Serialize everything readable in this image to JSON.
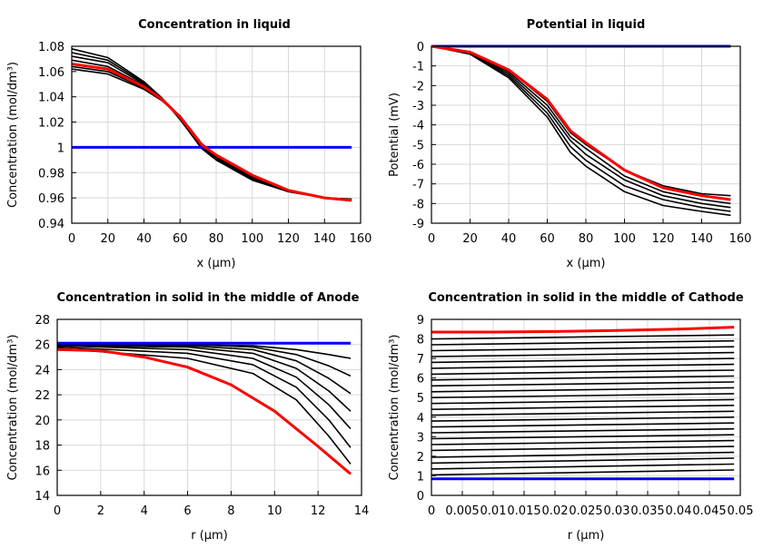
{
  "chart_data": [
    {
      "type": "line",
      "title": "Concentration in liquid",
      "xlabel": "x (µm)",
      "ylabel": "Concentration (mol/dm³)",
      "xlim": [
        0,
        160
      ],
      "ylim": [
        0.94,
        1.08
      ],
      "xticks": [
        0,
        20,
        40,
        60,
        80,
        100,
        120,
        140,
        160
      ],
      "yticks": [
        0.94,
        0.96,
        0.98,
        1,
        1.02,
        1.04,
        1.06,
        1.08
      ],
      "grid": true,
      "series": [
        {
          "color": "#000000",
          "x": [
            0,
            20,
            40,
            50,
            60,
            72,
            80,
            100,
            120,
            140,
            155
          ],
          "y": [
            1.078,
            1.071,
            1.052,
            1.039,
            1.022,
            0.999,
            0.99,
            0.974,
            0.965,
            0.96,
            0.959
          ]
        },
        {
          "color": "#000000",
          "x": [
            0,
            20,
            40,
            50,
            60,
            72,
            80,
            100,
            120,
            140,
            155
          ],
          "y": [
            1.075,
            1.069,
            1.051,
            1.039,
            1.022,
            1.0,
            0.991,
            0.975,
            0.965,
            0.96,
            0.959
          ]
        },
        {
          "color": "#000000",
          "x": [
            0,
            20,
            40,
            50,
            60,
            72,
            80,
            100,
            120,
            140,
            155
          ],
          "y": [
            1.072,
            1.067,
            1.05,
            1.038,
            1.023,
            1.0,
            0.991,
            0.975,
            0.966,
            0.96,
            0.959
          ]
        },
        {
          "color": "#000000",
          "x": [
            0,
            20,
            40,
            50,
            60,
            72,
            80,
            100,
            120,
            140,
            155
          ],
          "y": [
            1.069,
            1.064,
            1.049,
            1.038,
            1.023,
            1.001,
            0.992,
            0.976,
            0.966,
            0.96,
            0.958
          ]
        },
        {
          "color": "#000000",
          "x": [
            0,
            20,
            40,
            50,
            60,
            72,
            80,
            100,
            120,
            140,
            155
          ],
          "y": [
            1.064,
            1.06,
            1.047,
            1.037,
            1.024,
            1.002,
            0.993,
            0.977,
            0.966,
            0.96,
            0.958
          ]
        },
        {
          "color": "#000000",
          "x": [
            0,
            20,
            40,
            50,
            60,
            72,
            80,
            100,
            120,
            140,
            155
          ],
          "y": [
            1.062,
            1.058,
            1.046,
            1.037,
            1.025,
            1.003,
            0.994,
            0.977,
            0.966,
            0.96,
            0.958
          ]
        },
        {
          "color": "#0000ff",
          "x": [
            0,
            155
          ],
          "y": [
            1,
            1
          ]
        },
        {
          "color": "#ff0000",
          "x": [
            0,
            20,
            40,
            50,
            60,
            72,
            80,
            100,
            120,
            140,
            155
          ],
          "y": [
            1.066,
            1.062,
            1.048,
            1.038,
            1.024,
            1.002,
            0.994,
            0.978,
            0.966,
            0.96,
            0.958
          ]
        }
      ]
    },
    {
      "type": "line",
      "title": "Potential in liquid",
      "xlabel": "x (µm)",
      "ylabel": "Potential (mV)",
      "xlim": [
        0,
        160
      ],
      "ylim": [
        -9,
        0
      ],
      "xticks": [
        0,
        20,
        40,
        60,
        80,
        100,
        120,
        140,
        160
      ],
      "yticks": [
        -9,
        -8,
        -7,
        -6,
        -5,
        -4,
        -3,
        -2,
        -1,
        0
      ],
      "grid": true,
      "series": [
        {
          "color": "#000000",
          "x": [
            0,
            20,
            40,
            60,
            72,
            80,
            100,
            120,
            140,
            155
          ],
          "y": [
            0,
            -0.4,
            -1.6,
            -3.6,
            -5.4,
            -6.1,
            -7.4,
            -8.1,
            -8.4,
            -8.6
          ]
        },
        {
          "color": "#000000",
          "x": [
            0,
            20,
            40,
            60,
            72,
            80,
            100,
            120,
            140,
            155
          ],
          "y": [
            0,
            -0.38,
            -1.5,
            -3.4,
            -5.1,
            -5.8,
            -7.1,
            -7.8,
            -8.2,
            -8.4
          ]
        },
        {
          "color": "#000000",
          "x": [
            0,
            20,
            40,
            60,
            72,
            80,
            100,
            120,
            140,
            155
          ],
          "y": [
            0,
            -0.35,
            -1.4,
            -3.2,
            -4.8,
            -5.5,
            -6.8,
            -7.6,
            -8.0,
            -8.2
          ]
        },
        {
          "color": "#000000",
          "x": [
            0,
            20,
            40,
            60,
            72,
            80,
            100,
            120,
            140,
            155
          ],
          "y": [
            0,
            -0.33,
            -1.3,
            -3.0,
            -4.6,
            -5.2,
            -6.6,
            -7.4,
            -7.8,
            -8.0
          ]
        },
        {
          "color": "#000000",
          "x": [
            0,
            20,
            40,
            60,
            72,
            80,
            100,
            120,
            140,
            155
          ],
          "y": [
            0,
            -0.3,
            -1.2,
            -2.8,
            -4.4,
            -5.0,
            -6.3,
            -7.1,
            -7.5,
            -7.6
          ]
        },
        {
          "color": "#0000ff",
          "x": [
            0,
            155
          ],
          "y": [
            0,
            0
          ]
        },
        {
          "color": "#ff0000",
          "x": [
            0,
            20,
            40,
            60,
            72,
            80,
            100,
            120,
            140,
            155
          ],
          "y": [
            0,
            -0.3,
            -1.2,
            -2.7,
            -4.3,
            -4.9,
            -6.3,
            -7.2,
            -7.6,
            -7.8
          ]
        }
      ]
    },
    {
      "type": "line",
      "title": "Concentration in solid in the middle of Anode",
      "xlabel": "r (µm)",
      "ylabel": "Concentration (mol/dm³)",
      "xlim": [
        0,
        14
      ],
      "ylim": [
        14,
        28
      ],
      "xticks": [
        0,
        2,
        4,
        6,
        8,
        10,
        12,
        14
      ],
      "yticks": [
        14,
        16,
        18,
        20,
        22,
        24,
        26,
        28
      ],
      "grid": true,
      "series": [
        {
          "color": "#000000",
          "x": [
            0,
            6,
            9,
            11,
            12.5,
            13.5
          ],
          "y": [
            26.0,
            26.0,
            25.9,
            25.6,
            25.2,
            24.9
          ]
        },
        {
          "color": "#000000",
          "x": [
            0,
            6,
            9,
            11,
            12.5,
            13.5
          ],
          "y": [
            26.0,
            26.0,
            25.8,
            25.2,
            24.3,
            23.5
          ]
        },
        {
          "color": "#000000",
          "x": [
            0,
            6,
            9,
            11,
            12.5,
            13.5
          ],
          "y": [
            26.0,
            25.9,
            25.6,
            24.7,
            23.3,
            22.1
          ]
        },
        {
          "color": "#000000",
          "x": [
            0,
            6,
            9,
            11,
            12.5,
            13.5
          ],
          "y": [
            25.9,
            25.8,
            25.3,
            24.1,
            22.3,
            20.7
          ]
        },
        {
          "color": "#000000",
          "x": [
            0,
            6,
            9,
            11,
            12.5,
            13.5
          ],
          "y": [
            25.9,
            25.6,
            24.9,
            23.4,
            21.2,
            19.3
          ]
        },
        {
          "color": "#000000",
          "x": [
            0,
            6,
            9,
            11,
            12.5,
            13.5
          ],
          "y": [
            25.8,
            25.3,
            24.4,
            22.6,
            20.0,
            17.8
          ]
        },
        {
          "color": "#000000",
          "x": [
            0,
            6,
            9,
            11,
            12.5,
            13.5
          ],
          "y": [
            25.7,
            24.9,
            23.7,
            21.6,
            18.7,
            16.5
          ]
        },
        {
          "color": "#0000ff",
          "x": [
            0,
            13.5
          ],
          "y": [
            26.1,
            26.1
          ]
        },
        {
          "color": "#ff0000",
          "x": [
            0,
            2,
            4,
            6,
            8,
            10,
            12,
            13.5
          ],
          "y": [
            25.6,
            25.5,
            25.0,
            24.2,
            22.8,
            20.7,
            17.9,
            15.7
          ]
        }
      ]
    },
    {
      "type": "line",
      "title": "Concentration in solid in the middle of Cathode",
      "xlabel": "r (µm)",
      "ylabel": "Concentration (mol/dm³)",
      "xlim": [
        0,
        0.05
      ],
      "ylim": [
        0,
        9
      ],
      "xticks": [
        0,
        0.005,
        0.01,
        0.015,
        0.02,
        0.025,
        0.03,
        0.035,
        0.04,
        0.045,
        0.05
      ],
      "yticks": [
        0,
        1,
        2,
        3,
        4,
        5,
        6,
        7,
        8,
        9
      ],
      "grid": true,
      "series": [
        {
          "color": "#000000",
          "x": [
            0,
            0.049
          ],
          "y": [
            1.05,
            1.3
          ]
        },
        {
          "color": "#000000",
          "x": [
            0,
            0.049
          ],
          "y": [
            1.35,
            1.6
          ]
        },
        {
          "color": "#000000",
          "x": [
            0,
            0.049
          ],
          "y": [
            1.65,
            1.9
          ]
        },
        {
          "color": "#000000",
          "x": [
            0,
            0.049
          ],
          "y": [
            1.95,
            2.2
          ]
        },
        {
          "color": "#000000",
          "x": [
            0,
            0.049
          ],
          "y": [
            2.3,
            2.5
          ]
        },
        {
          "color": "#000000",
          "x": [
            0,
            0.049
          ],
          "y": [
            2.6,
            2.8
          ]
        },
        {
          "color": "#000000",
          "x": [
            0,
            0.049
          ],
          "y": [
            2.9,
            3.1
          ]
        },
        {
          "color": "#000000",
          "x": [
            0,
            0.049
          ],
          "y": [
            3.2,
            3.4
          ]
        },
        {
          "color": "#000000",
          "x": [
            0,
            0.049
          ],
          "y": [
            3.5,
            3.7
          ]
        },
        {
          "color": "#000000",
          "x": [
            0,
            0.049
          ],
          "y": [
            3.8,
            4.0
          ]
        },
        {
          "color": "#000000",
          "x": [
            0,
            0.049
          ],
          "y": [
            4.1,
            4.3
          ]
        },
        {
          "color": "#000000",
          "x": [
            0,
            0.049
          ],
          "y": [
            4.4,
            4.6
          ]
        },
        {
          "color": "#000000",
          "x": [
            0,
            0.049
          ],
          "y": [
            4.7,
            4.9
          ]
        },
        {
          "color": "#000000",
          "x": [
            0,
            0.049
          ],
          "y": [
            5.0,
            5.2
          ]
        },
        {
          "color": "#000000",
          "x": [
            0,
            0.049
          ],
          "y": [
            5.3,
            5.5
          ]
        },
        {
          "color": "#000000",
          "x": [
            0,
            0.049
          ],
          "y": [
            5.6,
            5.8
          ]
        },
        {
          "color": "#000000",
          "x": [
            0,
            0.049
          ],
          "y": [
            5.9,
            6.1
          ]
        },
        {
          "color": "#000000",
          "x": [
            0,
            0.049
          ],
          "y": [
            6.2,
            6.4
          ]
        },
        {
          "color": "#000000",
          "x": [
            0,
            0.049
          ],
          "y": [
            6.5,
            6.7
          ]
        },
        {
          "color": "#000000",
          "x": [
            0,
            0.049
          ],
          "y": [
            6.8,
            7.0
          ]
        },
        {
          "color": "#000000",
          "x": [
            0,
            0.049
          ],
          "y": [
            7.1,
            7.3
          ]
        },
        {
          "color": "#000000",
          "x": [
            0,
            0.049
          ],
          "y": [
            7.4,
            7.6
          ]
        },
        {
          "color": "#000000",
          "x": [
            0,
            0.049
          ],
          "y": [
            7.7,
            7.9
          ]
        },
        {
          "color": "#000000",
          "x": [
            0,
            0.049
          ],
          "y": [
            8.0,
            8.2
          ]
        },
        {
          "color": "#0000ff",
          "x": [
            0,
            0.049
          ],
          "y": [
            0.85,
            0.85
          ]
        },
        {
          "color": "#ff0000",
          "x": [
            0,
            0.01,
            0.02,
            0.03,
            0.04,
            0.049
          ],
          "y": [
            8.35,
            8.35,
            8.38,
            8.43,
            8.5,
            8.6
          ]
        }
      ]
    }
  ]
}
